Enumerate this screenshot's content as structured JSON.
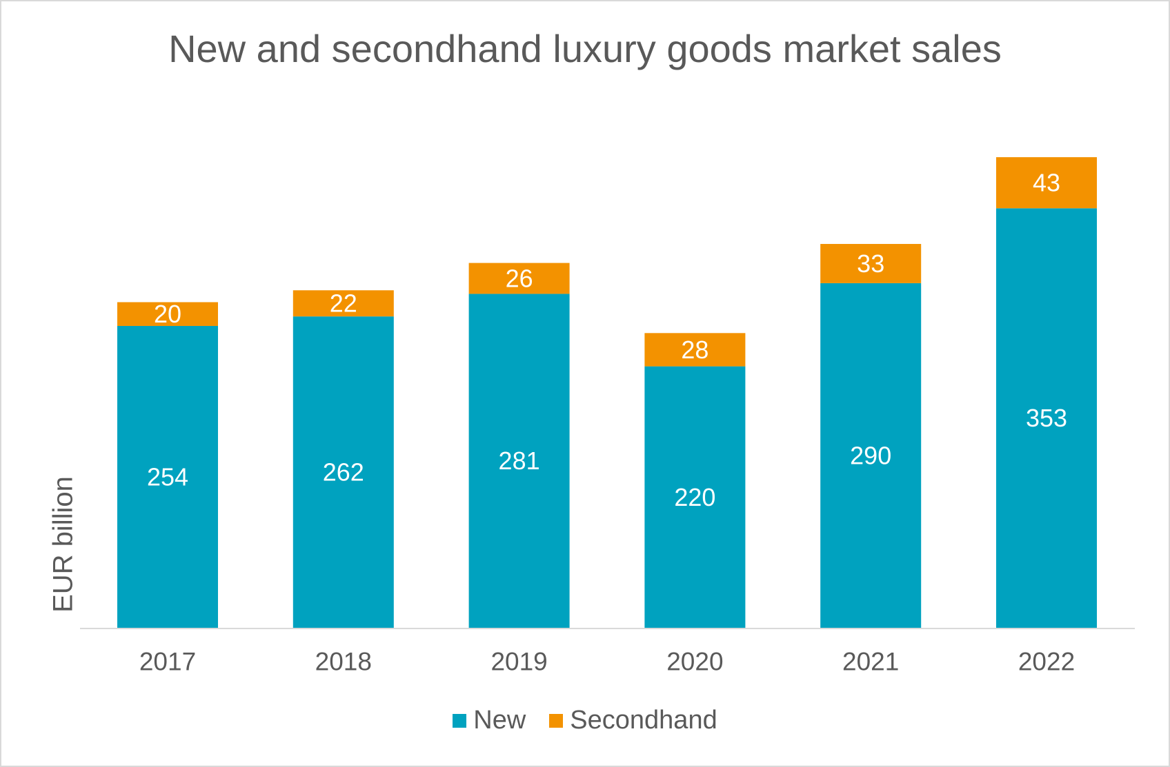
{
  "chart_data": {
    "type": "bar",
    "stacked": true,
    "title": "New and secondhand luxury goods market sales",
    "xlabel": "",
    "ylabel": "EUR billion",
    "categories": [
      "2017",
      "2018",
      "2019",
      "2020",
      "2021",
      "2022"
    ],
    "series": [
      {
        "name": "New",
        "color": "#00a2bf",
        "values": [
          254,
          262,
          281,
          220,
          290,
          353
        ]
      },
      {
        "name": "Secondhand",
        "color": "#f39200",
        "values": [
          20,
          22,
          26,
          28,
          33,
          43
        ]
      }
    ],
    "ylim": [
      0,
      400
    ],
    "grid": false,
    "legend_position": "bottom",
    "data_labels": true
  }
}
